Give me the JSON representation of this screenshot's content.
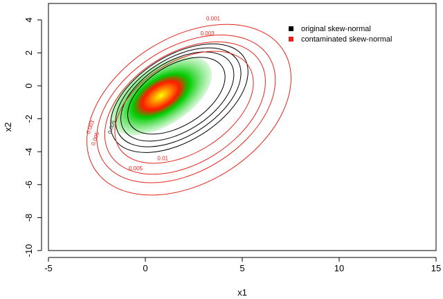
{
  "chart_data": {
    "type": "contour",
    "title": "",
    "xlabel": "x1",
    "ylabel": "x2",
    "xlim": [
      -5,
      15
    ],
    "ylim": [
      -10,
      5
    ],
    "xticks": [
      "-5",
      "0",
      "5",
      "10",
      "15"
    ],
    "yticks": [
      "-10",
      "-8",
      "-6",
      "-4",
      "-2",
      "0",
      "2",
      "4"
    ],
    "grid": false,
    "legend_position": "top-right",
    "heatmap": {
      "center": [
        0.8,
        -0.6
      ],
      "colors": [
        "#ffff00",
        "#ff8c00",
        "#ff1a00",
        "#00cc00",
        "#c8f5c8"
      ]
    },
    "series": [
      {
        "name": "original skew-normal",
        "color": "#000000",
        "contours": [
          {
            "cx": 1.6,
            "cy": -0.6,
            "rx": 2.8,
            "ry": 1.55,
            "angle": 32
          },
          {
            "cx": 1.65,
            "cy": -0.65,
            "rx": 3.25,
            "ry": 1.8,
            "angle": 32
          },
          {
            "cx": 1.7,
            "cy": -0.7,
            "rx": 3.6,
            "ry": 2.0,
            "angle": 32
          },
          {
            "cx": 1.75,
            "cy": -0.75,
            "rx": 3.95,
            "ry": 2.2,
            "angle": 32
          }
        ],
        "labels": [
          {
            "text": "0.005",
            "x": -1.75,
            "y": -2.5
          }
        ]
      },
      {
        "name": "contaminated skew-normal",
        "color": "#e8231b",
        "contours": [
          {
            "level": "0.01",
            "cx": 2.0,
            "cy": -1.3,
            "rx": 3.95,
            "ry": 2.35,
            "angle": 32
          },
          {
            "level": "0.005",
            "cx": 2.05,
            "cy": -1.35,
            "rx": 4.55,
            "ry": 2.85,
            "angle": 32
          },
          {
            "level": "0.003",
            "cx": 2.1,
            "cy": -1.4,
            "rx": 5.05,
            "ry": 3.2,
            "angle": 32
          },
          {
            "level": "0.001",
            "cx": 2.25,
            "cy": -1.45,
            "rx": 5.75,
            "ry": 3.75,
            "angle": 32
          }
        ],
        "labels": [
          {
            "text": "0.001",
            "x": 3.5,
            "y": 4.1
          },
          {
            "text": "0.003",
            "x": 3.2,
            "y": 3.2
          },
          {
            "text": "0.01",
            "x": 0.9,
            "y": -4.4
          },
          {
            "text": "0.005",
            "x": -0.5,
            "y": -5.0
          },
          {
            "text": "0.005",
            "x": -2.6,
            "y": -3.2
          },
          {
            "text": "0.003",
            "x": -2.85,
            "y": -2.5
          }
        ]
      }
    ]
  }
}
